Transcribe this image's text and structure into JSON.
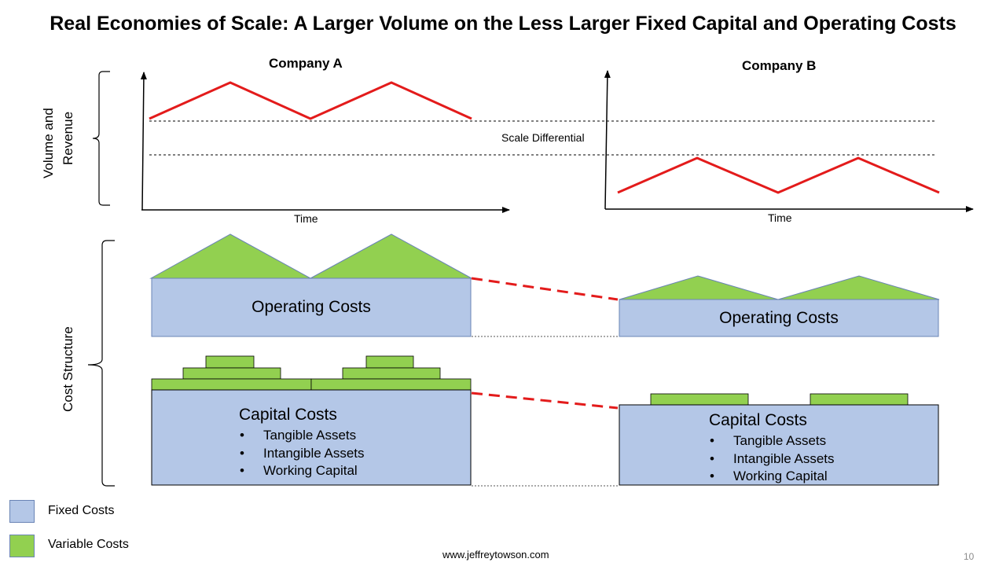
{
  "title": "Real Economies of Scale: A Larger Volume on the Less Larger Fixed Capital and Operating Costs",
  "company_a": {
    "label": "Company  A",
    "x_axis_label": "Time"
  },
  "company_b": {
    "label": "Company  B",
    "x_axis_label": "Time"
  },
  "y_group_label_line1": "Volume and",
  "y_group_label_line2": "Revenue",
  "scale_differential_label": "Scale Differential",
  "cost_structure_label": "Cost Structure",
  "company_a_costs": {
    "operating_label": "Operating Costs",
    "capital_label": "Capital Costs",
    "capital_items": [
      "Tangible Assets",
      "Intangible Assets",
      "Working Capital"
    ]
  },
  "company_b_costs": {
    "operating_label": "Operating Costs",
    "capital_label": "Capital Costs",
    "capital_items": [
      "Tangible Assets",
      "Intangible Assets",
      "Working Capital"
    ]
  },
  "legend": {
    "fixed": {
      "label": "Fixed Costs",
      "color": "#b4c7e7"
    },
    "variable": {
      "label": "Variable Costs",
      "color": "#92d050"
    }
  },
  "colors": {
    "revenue_line": "#e31b1b",
    "connector": "#e31b1b",
    "fixed": "#b4c7e7",
    "variable": "#92d050",
    "border": "#6a84b5"
  },
  "footer": "www.jeffreytowson.com",
  "page_number": "10"
}
